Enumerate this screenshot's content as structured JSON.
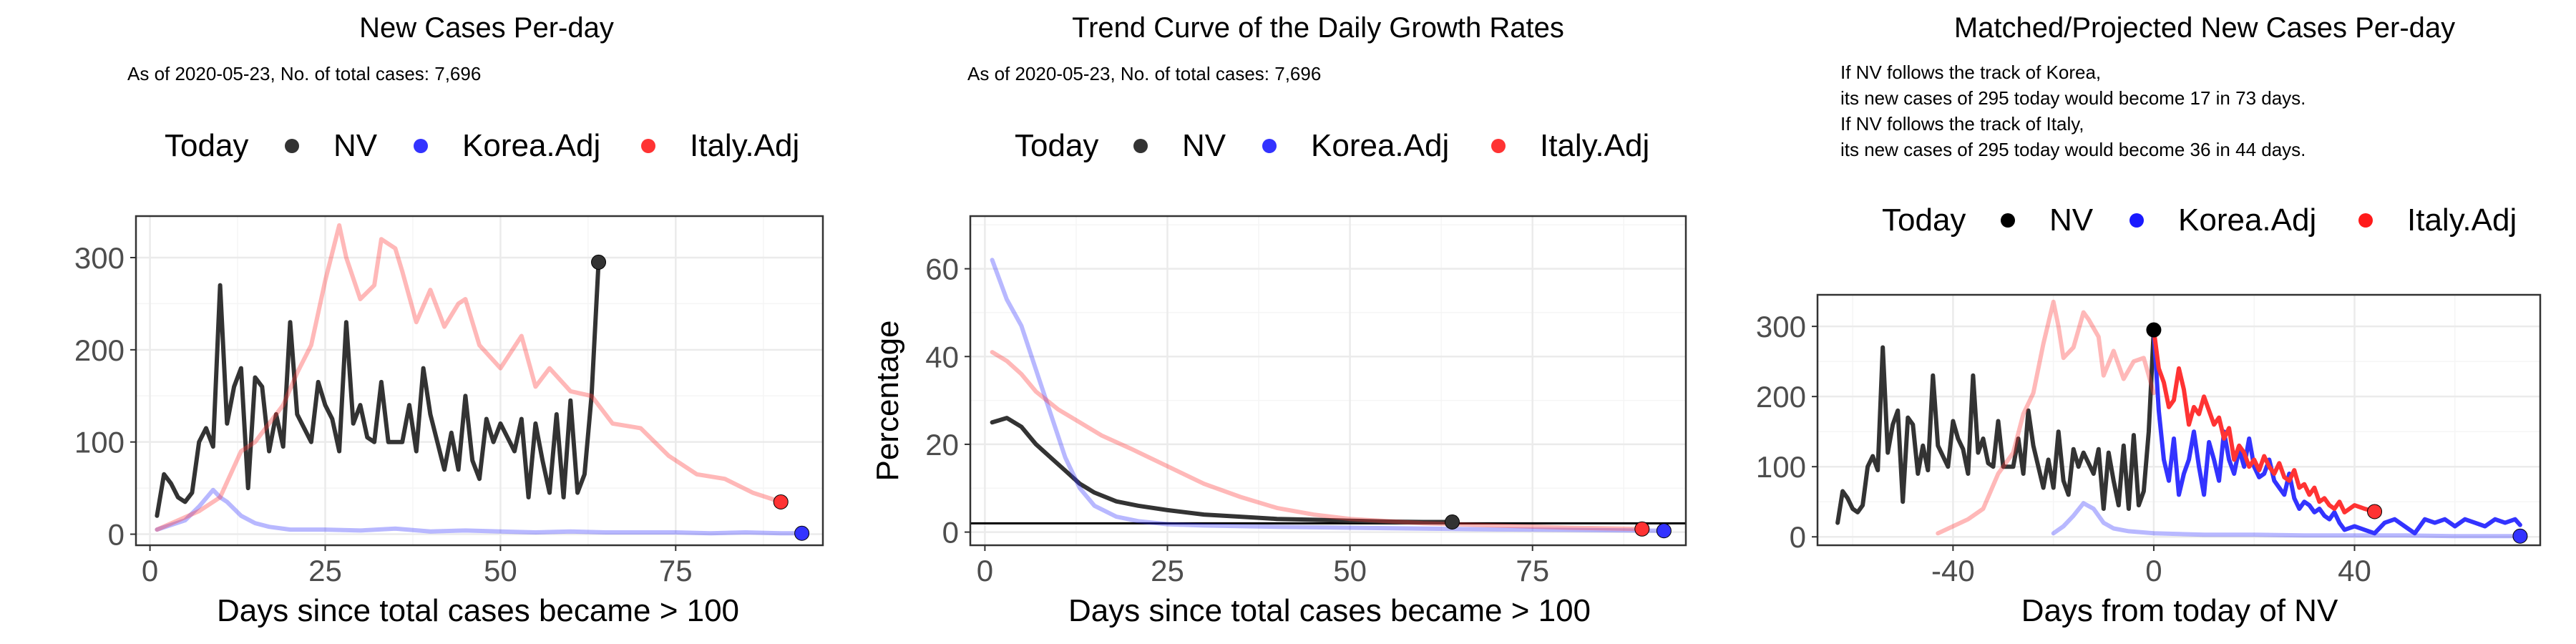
{
  "panels": [
    {
      "title": "New Cases Per-day",
      "subtitle": [
        "As of 2020-05-23, No. of total cases: 7,696"
      ],
      "legend": {
        "title": "Today",
        "items": [
          "NV",
          "Korea.Adj",
          "Italy.Adj"
        ]
      },
      "xlabel": "Days since total cases became > 100",
      "ylabel": ""
    },
    {
      "title": "Trend Curve of the Daily Growth Rates",
      "subtitle": [
        "As of 2020-05-23, No. of total cases: 7,696"
      ],
      "legend": {
        "title": "Today",
        "items": [
          "NV",
          "Korea.Adj",
          "Italy.Adj"
        ]
      },
      "xlabel": "Days since total cases became > 100",
      "ylabel": "Percentage"
    },
    {
      "title": "Matched/Projected New Cases Per-day",
      "subtitle": [
        "If NV follows the track of Korea,",
        "its new cases of 295 today would become 17 in 73 days.",
        "If NV follows the track of Italy,",
        "its new cases of 295 today would become 36 in 44 days."
      ],
      "legend": {
        "title": "Today",
        "items": [
          "NV",
          "Korea.Adj",
          "Italy.Adj"
        ]
      },
      "xlabel": "Days from today of NV",
      "ylabel": ""
    }
  ],
  "colors": {
    "nv": "#333333",
    "nv_point": "#000000",
    "korea": "#3333ff",
    "italy": "#ff3333",
    "grid_major": "#ebebeb",
    "grid_minor": "#f5f5f5",
    "tick_text": "#4d4d4d"
  },
  "chart_data": [
    {
      "type": "line",
      "title": "New Cases Per-day",
      "xlabel": "Days since total cases became > 100",
      "ylabel": "",
      "xlim": [
        -2,
        96
      ],
      "ylim": [
        -12,
        345
      ],
      "xticks": [
        0,
        25,
        50,
        75
      ],
      "yticks": [
        0,
        100,
        200,
        300
      ],
      "legend_position": "top",
      "series": [
        {
          "name": "NV",
          "color": "#333333",
          "opacity": 1,
          "x": [
            1,
            2,
            3,
            4,
            5,
            6,
            7,
            8,
            9,
            10,
            11,
            12,
            13,
            14,
            15,
            16,
            17,
            18,
            19,
            20,
            21,
            22,
            23,
            24,
            25,
            26,
            27,
            28,
            29,
            30,
            31,
            32,
            33,
            34,
            35,
            36,
            37,
            38,
            39,
            40,
            41,
            42,
            43,
            44,
            45,
            46,
            47,
            48,
            49,
            50,
            51,
            52,
            53,
            54,
            55,
            56,
            57,
            58,
            59,
            60,
            61,
            62,
            63,
            64
          ],
          "y": [
            20,
            65,
            55,
            40,
            35,
            45,
            100,
            115,
            95,
            270,
            120,
            160,
            180,
            50,
            170,
            160,
            90,
            130,
            95,
            230,
            130,
            115,
            100,
            165,
            140,
            125,
            90,
            230,
            120,
            140,
            105,
            100,
            165,
            100,
            100,
            100,
            140,
            90,
            180,
            130,
            100,
            70,
            110,
            70,
            150,
            80,
            60,
            125,
            100,
            120,
            105,
            90,
            125,
            40,
            120,
            80,
            45,
            130,
            40,
            145,
            45,
            65,
            150,
            295
          ]
        },
        {
          "name": "Korea.Adj",
          "color": "#3333ff",
          "opacity": 0.35,
          "x": [
            1,
            3,
            5,
            7,
            9,
            10,
            11,
            13,
            15,
            17,
            20,
            25,
            30,
            35,
            40,
            45,
            50,
            55,
            60,
            65,
            70,
            75,
            80,
            85,
            90,
            93
          ],
          "y": [
            5,
            10,
            15,
            30,
            48,
            40,
            35,
            20,
            12,
            8,
            5,
            5,
            4,
            6,
            3,
            4,
            3,
            2,
            3,
            2,
            2,
            2,
            1,
            2,
            1,
            1
          ]
        },
        {
          "name": "Italy.Adj",
          "color": "#ff3333",
          "opacity": 0.35,
          "x": [
            1,
            4,
            7,
            10,
            13,
            15,
            17,
            19,
            21,
            23,
            25,
            27,
            28,
            30,
            32,
            33,
            35,
            36,
            38,
            40,
            42,
            44,
            45,
            47,
            50,
            53,
            55,
            57,
            60,
            63,
            66,
            70,
            74,
            78,
            82,
            86,
            90
          ],
          "y": [
            5,
            15,
            25,
            40,
            90,
            100,
            120,
            140,
            175,
            205,
            275,
            335,
            300,
            255,
            270,
            320,
            310,
            285,
            230,
            265,
            225,
            250,
            255,
            205,
            180,
            215,
            160,
            180,
            155,
            150,
            120,
            115,
            85,
            65,
            60,
            45,
            35
          ]
        }
      ],
      "today_points": [
        {
          "name": "NV",
          "x": 64,
          "y": 295,
          "color": "#333333"
        },
        {
          "name": "Korea.Adj",
          "x": 93,
          "y": 1,
          "color": "#3333ff"
        },
        {
          "name": "Italy.Adj",
          "x": 90,
          "y": 35,
          "color": "#ff3333"
        }
      ]
    },
    {
      "type": "line",
      "title": "Trend Curve of the Daily Growth Rates",
      "xlabel": "Days since total cases became > 100",
      "ylabel": "Percentage",
      "xlim": [
        -2,
        96
      ],
      "ylim": [
        -3,
        72
      ],
      "xticks": [
        0,
        25,
        50,
        75
      ],
      "yticks": [
        0,
        20,
        40,
        60
      ],
      "hline": 2,
      "legend_position": "top",
      "series": [
        {
          "name": "NV",
          "color": "#333333",
          "opacity": 1,
          "x": [
            1,
            3,
            5,
            7,
            9,
            11,
            13,
            15,
            18,
            21,
            25,
            30,
            35,
            40,
            45,
            50,
            55,
            60,
            64
          ],
          "y": [
            25,
            26,
            24,
            20,
            17,
            14,
            11,
            9,
            7,
            6,
            5,
            4,
            3.5,
            3,
            2.8,
            2.6,
            2.4,
            2.3,
            2.3
          ]
        },
        {
          "name": "Korea.Adj",
          "color": "#3333ff",
          "opacity": 0.35,
          "x": [
            1,
            3,
            5,
            7,
            9,
            11,
            13,
            15,
            18,
            21,
            25,
            30,
            40,
            50,
            60,
            70,
            80,
            93
          ],
          "y": [
            62,
            53,
            47,
            37,
            27,
            17,
            10,
            6,
            3.5,
            2.5,
            1.8,
            1.5,
            1.2,
            1,
            0.8,
            0.6,
            0.5,
            0.3
          ]
        },
        {
          "name": "Italy.Adj",
          "color": "#ff3333",
          "opacity": 0.35,
          "x": [
            1,
            3,
            5,
            7,
            10,
            13,
            16,
            20,
            25,
            30,
            35,
            40,
            45,
            50,
            55,
            60,
            70,
            80,
            90
          ],
          "y": [
            41,
            39,
            36,
            32,
            28,
            25,
            22,
            19,
            15,
            11,
            8,
            5.5,
            4,
            3,
            2.5,
            2,
            1.5,
            1,
            0.7
          ]
        }
      ],
      "today_points": [
        {
          "name": "NV",
          "x": 64,
          "y": 2.3,
          "color": "#333333"
        },
        {
          "name": "Korea.Adj",
          "x": 93,
          "y": 0.3,
          "color": "#3333ff"
        },
        {
          "name": "Italy.Adj",
          "x": 90,
          "y": 0.7,
          "color": "#ff3333"
        }
      ]
    },
    {
      "type": "line",
      "title": "Matched/Projected New Cases Per-day",
      "xlabel": "Days from today of NV",
      "ylabel": "",
      "xlim": [
        -67,
        77
      ],
      "ylim": [
        -12,
        345
      ],
      "xticks": [
        -40,
        0,
        40
      ],
      "yticks": [
        0,
        100,
        200,
        300
      ],
      "legend_position": "top",
      "series": [
        {
          "name": "NV",
          "color": "#333333",
          "opacity": 1,
          "x": [
            -63,
            -62,
            -61,
            -60,
            -59,
            -58,
            -57,
            -56,
            -55,
            -54,
            -53,
            -52,
            -51,
            -50,
            -49,
            -48,
            -47,
            -46,
            -45,
            -44,
            -43,
            -42,
            -41,
            -40,
            -39,
            -38,
            -37,
            -36,
            -35,
            -34,
            -33,
            -32,
            -31,
            -30,
            -29,
            -28,
            -27,
            -26,
            -25,
            -24,
            -23,
            -22,
            -21,
            -20,
            -19,
            -18,
            -17,
            -16,
            -15,
            -14,
            -13,
            -12,
            -11,
            -10,
            -9,
            -8,
            -7,
            -6,
            -5,
            -4,
            -3,
            -2,
            -1,
            0
          ],
          "y": [
            20,
            65,
            55,
            40,
            35,
            45,
            100,
            115,
            95,
            270,
            120,
            160,
            180,
            50,
            170,
            160,
            90,
            130,
            95,
            230,
            130,
            115,
            100,
            165,
            140,
            125,
            90,
            230,
            120,
            140,
            105,
            100,
            165,
            100,
            100,
            100,
            140,
            90,
            180,
            130,
            100,
            70,
            110,
            70,
            150,
            80,
            60,
            125,
            100,
            120,
            105,
            90,
            125,
            40,
            120,
            80,
            45,
            130,
            40,
            145,
            45,
            65,
            150,
            295
          ]
        },
        {
          "name": "Korea.Adj",
          "color": "#3333ff",
          "opacity": 0.35,
          "x": [
            -20,
            -18,
            -16,
            -14,
            -12,
            -10,
            -8,
            -5,
            0,
            5,
            10,
            20,
            30,
            40,
            50,
            60,
            73
          ],
          "y": [
            5,
            15,
            30,
            48,
            40,
            20,
            12,
            8,
            5,
            4,
            3,
            3,
            2,
            2,
            2,
            1,
            1
          ]
        },
        {
          "name": "Italy.Adj",
          "color": "#ff3333",
          "opacity": 0.35,
          "x": [
            -43,
            -40,
            -37,
            -34,
            -31,
            -28,
            -26,
            -24,
            -22,
            -20,
            -19,
            -18,
            -16,
            -14,
            -13,
            -11,
            -10,
            -8,
            -6,
            -4,
            -2,
            0
          ],
          "y": [
            5,
            15,
            25,
            40,
            90,
            120,
            175,
            205,
            275,
            335,
            300,
            255,
            270,
            320,
            310,
            285,
            230,
            265,
            225,
            250,
            255,
            205
          ]
        },
        {
          "name": "Korea.Adj (projected)",
          "color": "#3333ff",
          "opacity": 1,
          "x": [
            0,
            1,
            2,
            3,
            4,
            5,
            6,
            7,
            8,
            9,
            10,
            11,
            12,
            13,
            14,
            15,
            16,
            17,
            18,
            19,
            20,
            21,
            22,
            23,
            24,
            25,
            26,
            27,
            28,
            29,
            30,
            31,
            32,
            33,
            34,
            35,
            36,
            37,
            38,
            40,
            42,
            44,
            46,
            48,
            50,
            52,
            54,
            56,
            58,
            60,
            62,
            64,
            66,
            68,
            70,
            72,
            73
          ],
          "y": [
            295,
            180,
            110,
            80,
            140,
            60,
            90,
            110,
            150,
            100,
            60,
            135,
            110,
            80,
            150,
            110,
            90,
            125,
            100,
            140,
            100,
            85,
            90,
            110,
            80,
            70,
            60,
            90,
            55,
            40,
            50,
            45,
            35,
            40,
            30,
            25,
            35,
            20,
            10,
            15,
            10,
            5,
            20,
            25,
            15,
            5,
            25,
            20,
            25,
            15,
            25,
            20,
            15,
            25,
            20,
            25,
            17
          ]
        },
        {
          "name": "Italy.Adj (projected)",
          "color": "#ff3333",
          "opacity": 1,
          "x": [
            0,
            1,
            2,
            3,
            4,
            5,
            6,
            7,
            8,
            9,
            10,
            11,
            12,
            13,
            14,
            15,
            16,
            17,
            18,
            19,
            20,
            21,
            22,
            23,
            24,
            25,
            26,
            27,
            28,
            29,
            30,
            31,
            32,
            33,
            34,
            35,
            36,
            37,
            38,
            40,
            42,
            44
          ],
          "y": [
            295,
            240,
            220,
            185,
            195,
            240,
            210,
            160,
            185,
            175,
            200,
            180,
            160,
            170,
            140,
            155,
            110,
            130,
            120,
            100,
            110,
            95,
            115,
            100,
            90,
            105,
            85,
            80,
            95,
            70,
            75,
            60,
            70,
            50,
            55,
            45,
            40,
            50,
            35,
            45,
            40,
            36
          ]
        }
      ],
      "today_points": [
        {
          "name": "NV",
          "x": 0,
          "y": 295,
          "color": "#000000"
        },
        {
          "name": "Korea.Adj",
          "x": 73,
          "y": 1,
          "color": "#3333ff"
        },
        {
          "name": "Italy.Adj",
          "x": 44,
          "y": 36,
          "color": "#ff3333"
        }
      ]
    }
  ]
}
